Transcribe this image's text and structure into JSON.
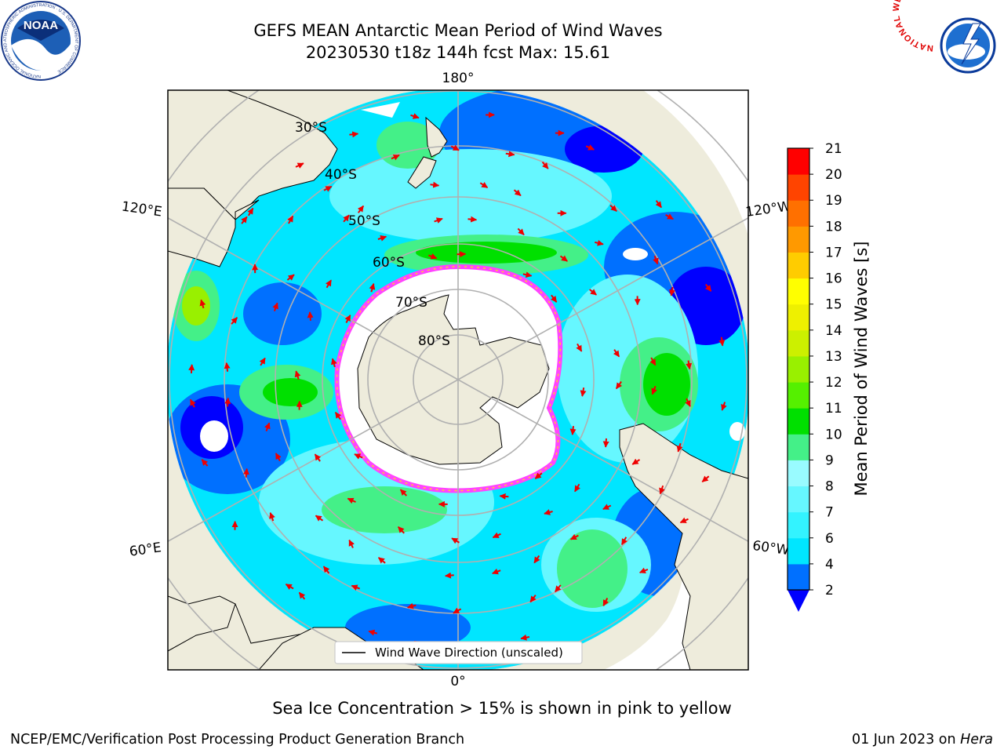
{
  "header": {
    "title_line1": "GEFS MEAN Antarctic Mean Period of Wind Waves",
    "title_line2": "20230530 t18z 144h fcst   Max: 15.61"
  },
  "logos": {
    "left": {
      "text": "NOAA",
      "ring_text": "NATIONAL OCEANIC AND ATMOSPHERIC ADMINISTRATION · U.S. DEPARTMENT OF COMMERCE",
      "icon": "noaa-logo"
    },
    "right": {
      "ring_text": "NATIONAL WEATHER SERVICE",
      "icon": "nws-logo"
    }
  },
  "map": {
    "projection": "south-polar-stereographic",
    "longitude_labels": {
      "top": "180°",
      "bottom": "0°",
      "upper_left": "120°E",
      "upper_right": "120°W",
      "lower_left": "60°E",
      "lower_right": "60°W"
    },
    "latitude_labels": [
      "30°S",
      "40°S",
      "50°S",
      "60°S",
      "70°S",
      "80°S"
    ],
    "legend_label": "Wind Wave Direction (unscaled)",
    "colors": {
      "land": "#eeecdc",
      "ice": "#ffffff",
      "ice_edge": [
        "#ff44ff",
        "#ff9966",
        "#ffcc33"
      ],
      "grid": "#b0b0b0",
      "arrows": "#ee0000"
    }
  },
  "colorbar": {
    "label": "Mean Period of Wind Waves [s]",
    "ticks": [
      "2",
      "4",
      "6",
      "7",
      "8",
      "9",
      "10",
      "11",
      "12",
      "13",
      "14",
      "15",
      "16",
      "17",
      "18",
      "19",
      "20",
      "21"
    ],
    "colors": [
      "#0070ff",
      "#00e6ff",
      "#33f3ff",
      "#66f7ff",
      "#99fbff",
      "#44f088",
      "#00e000",
      "#55f000",
      "#99f000",
      "#ccf000",
      "#eef000",
      "#ffff00",
      "#ffcc00",
      "#ff9900",
      "#ff7000",
      "#ff4400",
      "#ff0000"
    ],
    "under_color": "#0000ff"
  },
  "captions": {
    "sea_ice": "Sea Ice Concentration > 15% is shown in pink to yellow",
    "footer_left": "NCEP/EMC/Verification Post Processing Product Generation Branch",
    "footer_date": "01 Jun 2023 on ",
    "footer_host": "Hera"
  }
}
